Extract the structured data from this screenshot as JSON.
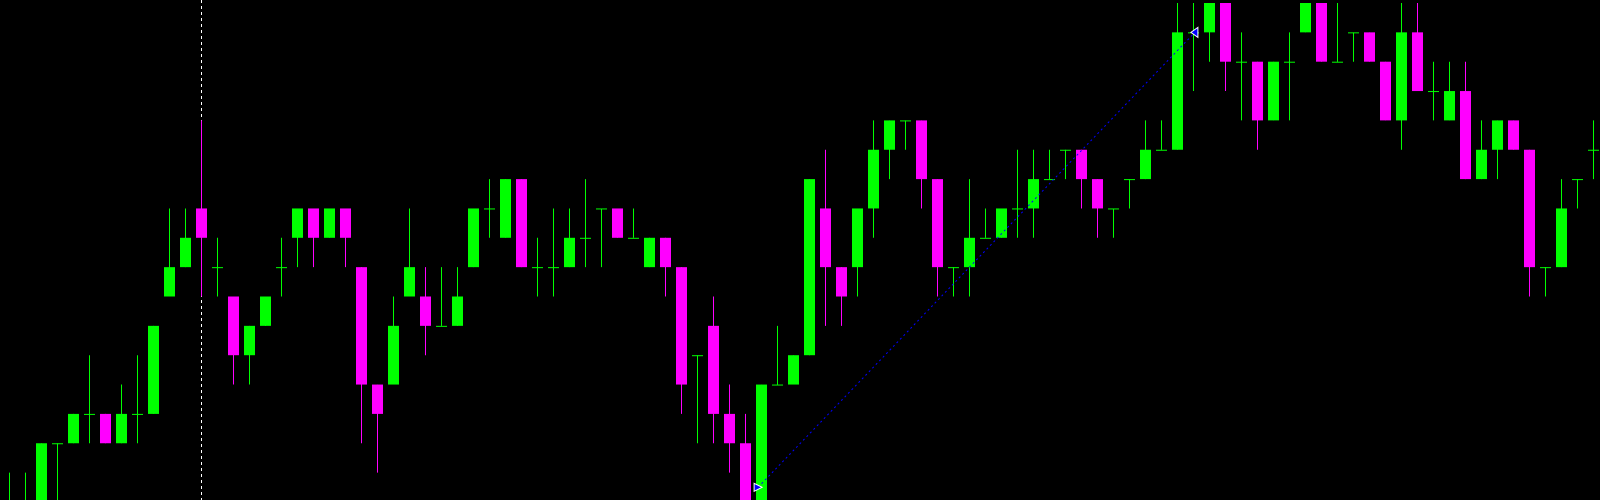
{
  "chart_data": {
    "type": "candlestick",
    "title": "",
    "xlabel": "",
    "ylabel": "",
    "grid": false,
    "background_color": "#000000",
    "bull_color": "#00ff00",
    "bear_color": "#ff00ff",
    "ylim": [
      0,
      17
    ],
    "candle_fields": [
      "open",
      "high",
      "low",
      "close"
    ],
    "candles": [
      [
        -1,
        1,
        -1,
        0
      ],
      [
        -1,
        1,
        -1,
        0
      ],
      [
        0,
        2,
        -1,
        2
      ],
      [
        2,
        2,
        0,
        2
      ],
      [
        2,
        3,
        2,
        3
      ],
      [
        3,
        5,
        2,
        3
      ],
      [
        3,
        3,
        2,
        2
      ],
      [
        2,
        4,
        2,
        3
      ],
      [
        3,
        5,
        2,
        3
      ],
      [
        3,
        6,
        3,
        6
      ],
      [
        7,
        10,
        7,
        8
      ],
      [
        8,
        10,
        8,
        9
      ],
      [
        10,
        13,
        7,
        9
      ],
      [
        8,
        9,
        7,
        8
      ],
      [
        7,
        7,
        4,
        5
      ],
      [
        5,
        6,
        4,
        6
      ],
      [
        6,
        7,
        6,
        7
      ],
      [
        8,
        9,
        7,
        8
      ],
      [
        9,
        10,
        8,
        10
      ],
      [
        10,
        10,
        8,
        9
      ],
      [
        9,
        10,
        9,
        10
      ],
      [
        10,
        10,
        8,
        9
      ],
      [
        8,
        8,
        2,
        4
      ],
      [
        4,
        4,
        1,
        3
      ],
      [
        4,
        7,
        4,
        6
      ],
      [
        7,
        10,
        7,
        8
      ],
      [
        7,
        8,
        5,
        6
      ],
      [
        6,
        8,
        6,
        6
      ],
      [
        6,
        8,
        6,
        7
      ],
      [
        8,
        10,
        8,
        10
      ],
      [
        10,
        11,
        9,
        10
      ],
      [
        9,
        11,
        9,
        11
      ],
      [
        11,
        11,
        8,
        8
      ],
      [
        8,
        9,
        7,
        8
      ],
      [
        8,
        10,
        7,
        8
      ],
      [
        8,
        10,
        8,
        9
      ],
      [
        9,
        11,
        8,
        9
      ],
      [
        10,
        10,
        8,
        10
      ],
      [
        10,
        10,
        9,
        9
      ],
      [
        9,
        10,
        9,
        9
      ],
      [
        8,
        9,
        8,
        9
      ],
      [
        9,
        9,
        7,
        8
      ],
      [
        8,
        8,
        3,
        4
      ],
      [
        5,
        5,
        2,
        5
      ],
      [
        6,
        7,
        2,
        3
      ],
      [
        3,
        4,
        1,
        2
      ],
      [
        2,
        3,
        -1,
        0
      ],
      [
        0,
        4,
        -1,
        4
      ],
      [
        4,
        6,
        4,
        4
      ],
      [
        4,
        5,
        4,
        5
      ],
      [
        5,
        11,
        5,
        11
      ],
      [
        10,
        12,
        6,
        8
      ],
      [
        8,
        8,
        6,
        7
      ],
      [
        8,
        10,
        7,
        10
      ],
      [
        10,
        13,
        9,
        12
      ],
      [
        12,
        13,
        11,
        13
      ],
      [
        13,
        13,
        12,
        13
      ],
      [
        13,
        13,
        10,
        11
      ],
      [
        11,
        11,
        7,
        8
      ],
      [
        8,
        8,
        7,
        8
      ],
      [
        8,
        11,
        7,
        9
      ],
      [
        9,
        10,
        9,
        9
      ],
      [
        9,
        10,
        9,
        10
      ],
      [
        10,
        12,
        9,
        10
      ],
      [
        10,
        12,
        9,
        11
      ],
      [
        11,
        12,
        11,
        11
      ],
      [
        12,
        12,
        11,
        12
      ],
      [
        12,
        12,
        10,
        11
      ],
      [
        11,
        11,
        9,
        10
      ],
      [
        10,
        10,
        9,
        10
      ],
      [
        11,
        11,
        10,
        11
      ],
      [
        11,
        13,
        11,
        12
      ],
      [
        12,
        13,
        12,
        12
      ],
      [
        12,
        17,
        12,
        16
      ],
      [
        16,
        17,
        14,
        16
      ],
      [
        16,
        17,
        15,
        17
      ],
      [
        17,
        17,
        14,
        15
      ],
      [
        15,
        16,
        13,
        15
      ],
      [
        15,
        15,
        12,
        13
      ],
      [
        13,
        15,
        13,
        15
      ],
      [
        15,
        16,
        13,
        15
      ],
      [
        16,
        17,
        16,
        17
      ],
      [
        17,
        17,
        15,
        15
      ],
      [
        15,
        17,
        15,
        15
      ],
      [
        16,
        16,
        15,
        16
      ],
      [
        16,
        16,
        15,
        15
      ],
      [
        15,
        15,
        13,
        13
      ],
      [
        13,
        17,
        12,
        16
      ],
      [
        16,
        17,
        14,
        14
      ],
      [
        14,
        15,
        13,
        14
      ],
      [
        13,
        15,
        13,
        14
      ],
      [
        14,
        15,
        11,
        11
      ],
      [
        11,
        13,
        11,
        12
      ],
      [
        12,
        13,
        11,
        13
      ],
      [
        13,
        13,
        12,
        12
      ],
      [
        12,
        12,
        7,
        8
      ],
      [
        8,
        8,
        7,
        8
      ],
      [
        8,
        11,
        8,
        10
      ],
      [
        11,
        11,
        10,
        11
      ],
      [
        12,
        13,
        11,
        12
      ]
    ],
    "annotations": {
      "vertical_line": {
        "bar": 12,
        "color": "#ffffff",
        "style": "dashed"
      },
      "trendline": {
        "from": {
          "bar": 46.8,
          "price": 0.5
        },
        "to": {
          "bar": 74.1,
          "price": 16.0
        },
        "color": "#0000ff",
        "style": "dotted"
      }
    }
  }
}
